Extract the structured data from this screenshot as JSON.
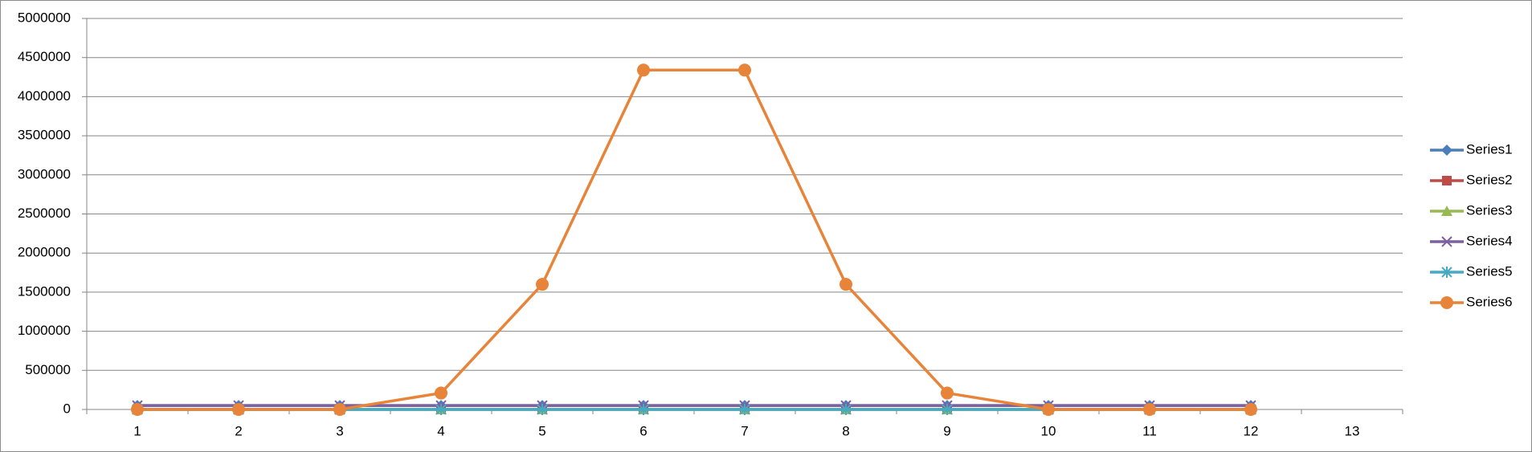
{
  "chart_data": {
    "type": "line",
    "categories": [
      "1",
      "2",
      "3",
      "4",
      "5",
      "6",
      "7",
      "8",
      "9",
      "10",
      "11",
      "12",
      "13"
    ],
    "series": [
      {
        "name": "Series1",
        "color": "#4a7ebb",
        "marker": "diamond",
        "values": [
          50000,
          50000,
          50000,
          50000,
          50000,
          50000,
          50000,
          50000,
          50000,
          50000,
          50000,
          50000,
          null
        ]
      },
      {
        "name": "Series2",
        "color": "#be4b48",
        "marker": "square",
        "values": [
          0,
          0,
          0,
          0,
          0,
          0,
          0,
          0,
          0,
          0,
          0,
          0,
          null
        ]
      },
      {
        "name": "Series3",
        "color": "#98b954",
        "marker": "triangle",
        "values": [
          0,
          0,
          0,
          0,
          0,
          0,
          0,
          0,
          0,
          0,
          0,
          0,
          null
        ]
      },
      {
        "name": "Series4",
        "color": "#7d60a0",
        "marker": "x",
        "values": [
          50000,
          50000,
          50000,
          50000,
          50000,
          50000,
          50000,
          50000,
          50000,
          50000,
          50000,
          50000,
          null
        ]
      },
      {
        "name": "Series5",
        "color": "#46aac5",
        "marker": "star",
        "values": [
          0,
          0,
          0,
          0,
          0,
          0,
          0,
          0,
          0,
          0,
          0,
          0,
          null
        ]
      },
      {
        "name": "Series6",
        "color": "#e8833a",
        "marker": "circle",
        "values": [
          0,
          0,
          0,
          210000,
          1600000,
          4340000,
          4340000,
          1600000,
          210000,
          0,
          0,
          0,
          null
        ]
      }
    ],
    "ylim": [
      0,
      5000000
    ],
    "yticks": [
      0,
      500000,
      1000000,
      1500000,
      2000000,
      2500000,
      3000000,
      3500000,
      4000000,
      4500000,
      5000000
    ],
    "grid": true,
    "legend": "right"
  }
}
